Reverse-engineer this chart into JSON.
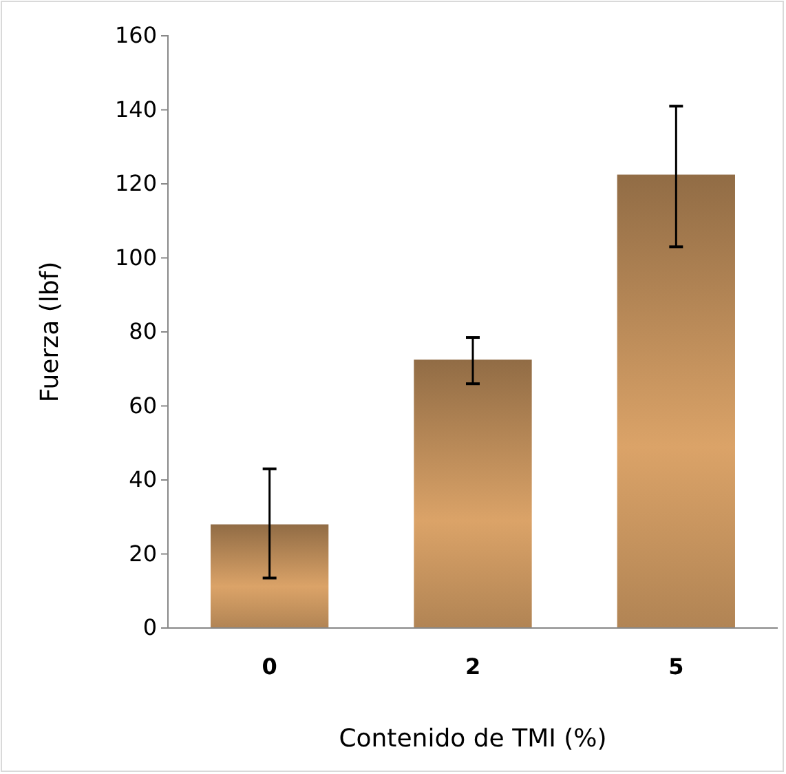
{
  "chart_data": {
    "type": "bar",
    "xlabel": "Contenido de TMI (%)",
    "ylabel": "Fuerza (lbf)",
    "categories": [
      "0",
      "2",
      "5"
    ],
    "values": [
      28,
      72.5,
      122.5
    ],
    "errors": [
      [
        13.5,
        43
      ],
      [
        66,
        78.5
      ],
      [
        103,
        141
      ]
    ],
    "color": "#c8955f",
    "ylim": [
      0,
      160
    ],
    "yticks": [
      0,
      20,
      40,
      60,
      80,
      100,
      120,
      140,
      160
    ]
  }
}
